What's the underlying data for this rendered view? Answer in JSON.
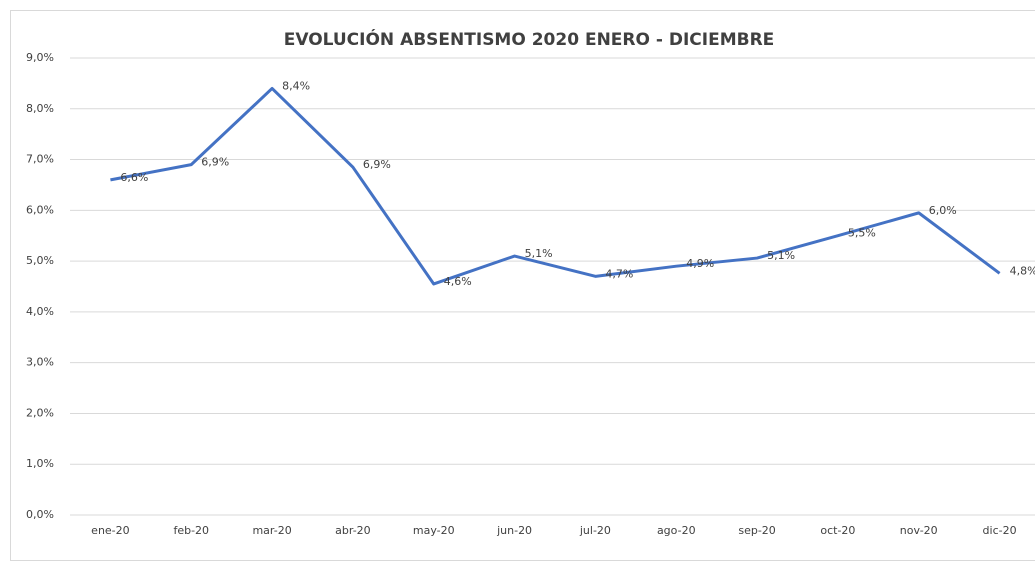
{
  "chart_data": {
    "type": "line",
    "title": "EVOLUCIÓN ABSENTISMO 2020 ENERO - DICIEMBRE",
    "categories": [
      "ene-20",
      "feb-20",
      "mar-20",
      "abr-20",
      "may-20",
      "jun-20",
      "jul-20",
      "ago-20",
      "sep-20",
      "oct-20",
      "nov-20",
      "dic-20"
    ],
    "series": [
      {
        "color": "#4472c4",
        "values": [
          6.6,
          6.9,
          8.4,
          6.85,
          4.55,
          5.1,
          4.7,
          4.9,
          5.06,
          5.5,
          5.95,
          4.76
        ],
        "value_labels": [
          "6,6%",
          "6,9%",
          "8,4%",
          "6,9%",
          "4,6%",
          "5,1%",
          "4,7%",
          "4,9%",
          "5,1%",
          "5,5%",
          "6,0%",
          "4,8%"
        ]
      }
    ],
    "ylim": [
      0,
      9
    ],
    "yticks": [
      {
        "value": 0,
        "label": "0,0%"
      },
      {
        "value": 1,
        "label": "1,0%"
      },
      {
        "value": 2,
        "label": "2,0%"
      },
      {
        "value": 3,
        "label": "3,0%"
      },
      {
        "value": 4,
        "label": "4,0%"
      },
      {
        "value": 5,
        "label": "5,0%"
      },
      {
        "value": 6,
        "label": "6,0%"
      },
      {
        "value": 7,
        "label": "7,0%"
      },
      {
        "value": 8,
        "label": "8,0%"
      },
      {
        "value": 9,
        "label": "9,0%"
      }
    ],
    "grid": true
  }
}
